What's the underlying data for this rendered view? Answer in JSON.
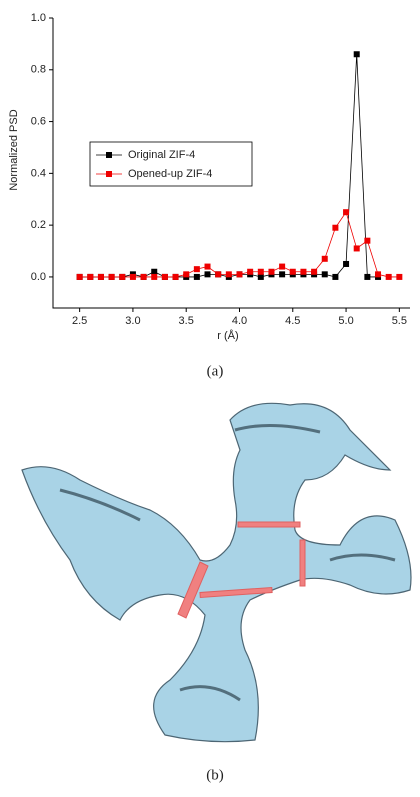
{
  "chart_data": {
    "type": "line",
    "y_label": "Normalized PSD",
    "x_label": "r (Å)",
    "x": [
      2.5,
      2.6,
      2.7,
      2.8,
      2.9,
      3.0,
      3.1,
      3.2,
      3.3,
      3.4,
      3.5,
      3.6,
      3.7,
      3.8,
      3.9,
      4.0,
      4.1,
      4.2,
      4.3,
      4.4,
      4.5,
      4.6,
      4.7,
      4.8,
      4.9,
      5.0,
      5.1,
      5.2,
      5.3,
      5.4,
      5.5
    ],
    "series": [
      {
        "name": "Original ZIF-4",
        "color": "#000000",
        "values": [
          0,
          0,
          0,
          0,
          0,
          0.01,
          0,
          0.02,
          0,
          0,
          0,
          0,
          0.01,
          0.01,
          0,
          0.01,
          0.01,
          0,
          0.01,
          0.01,
          0.01,
          0.01,
          0.01,
          0.01,
          0,
          0.05,
          0.86,
          0,
          0,
          null,
          null
        ]
      },
      {
        "name": "Opened-up ZIF-4",
        "color": "#ee0000",
        "values": [
          0,
          0,
          0,
          0,
          0,
          0,
          0,
          0,
          0,
          0,
          0.01,
          0.03,
          0.04,
          0.01,
          0.01,
          0.01,
          0.02,
          0.02,
          0.02,
          0.04,
          0.02,
          0.02,
          0.02,
          0.07,
          0.19,
          0.25,
          0.11,
          0.14,
          0.01,
          0,
          0
        ]
      }
    ],
    "xlim": [
      2.25,
      5.6
    ],
    "ylim": [
      -0.12,
      1.0
    ],
    "xticks": [
      {
        "value": 2.5,
        "label": "2.5"
      },
      {
        "value": 3,
        "label": "3.0"
      },
      3.5,
      {
        "value": 4,
        "label": "4.0"
      },
      4.5,
      {
        "value": 5,
        "label": "5.0"
      },
      5.5
    ],
    "yticks": [
      {
        "value": 0,
        "label": "0.0"
      },
      0.2,
      0.4,
      0.6,
      0.8,
      {
        "value": 1,
        "label": "1.0"
      }
    ],
    "legend": "upper left"
  },
  "captions": [
    "(a)",
    "(b)"
  ]
}
